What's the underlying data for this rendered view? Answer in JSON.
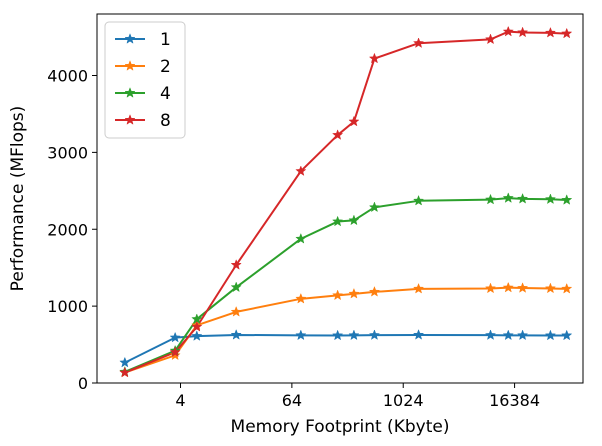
{
  "chart_data": {
    "type": "line",
    "xscale": "log2",
    "xlabel": "Memory Footprint (Kbyte)",
    "ylabel": "Performance (MFlops)",
    "xticks": [
      4,
      64,
      1024,
      16384
    ],
    "xtick_labels": [
      "4",
      "64",
      "1024",
      "16384"
    ],
    "yticks": [
      0,
      1000,
      2000,
      3000,
      4000
    ],
    "ytick_labels": [
      "0",
      "1000",
      "2000",
      "3000",
      "4000"
    ],
    "xlim": [
      0.5,
      90000
    ],
    "ylim": [
      0,
      4800
    ],
    "grid": false,
    "legend_position": "top-left",
    "x": [
      1,
      3.5,
      6,
      16,
      80,
      200,
      300,
      500,
      1500,
      9000,
      14000,
      20000,
      40000,
      60000
    ],
    "series": [
      {
        "name": "1",
        "color": "#1f77b4",
        "marker": "star",
        "values": [
          265,
          590,
          610,
          625,
          620,
          618,
          620,
          622,
          625,
          622,
          620,
          620,
          618,
          618
        ]
      },
      {
        "name": "2",
        "color": "#ff7f0e",
        "marker": "star",
        "values": [
          135,
          360,
          750,
          925,
          1095,
          1140,
          1160,
          1185,
          1225,
          1230,
          1240,
          1235,
          1230,
          1225
        ]
      },
      {
        "name": "4",
        "color": "#2ca02c",
        "marker": "star",
        "values": [
          145,
          420,
          830,
          1245,
          1875,
          2100,
          2115,
          2285,
          2370,
          2385,
          2405,
          2395,
          2390,
          2380
        ]
      },
      {
        "name": "8",
        "color": "#d62728",
        "marker": "star",
        "values": [
          135,
          400,
          730,
          1535,
          2755,
          3225,
          3400,
          4220,
          4420,
          4470,
          4570,
          4560,
          4555,
          4545
        ]
      }
    ]
  }
}
